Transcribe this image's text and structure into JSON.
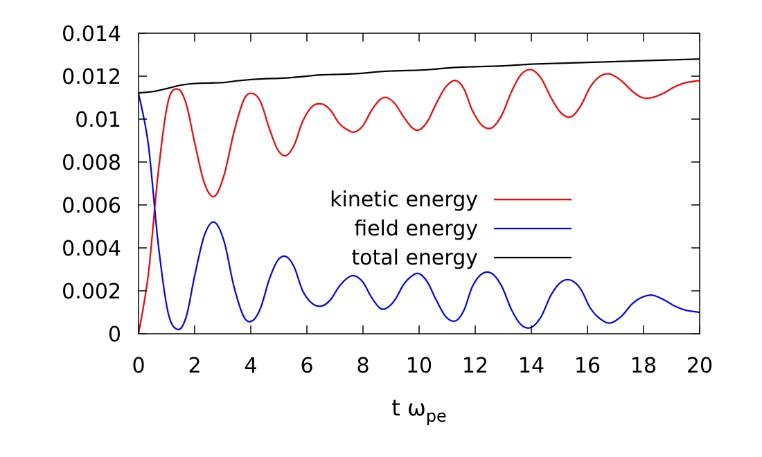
{
  "chart_data": {
    "type": "line",
    "title": "",
    "xlabel": "t ω",
    "xlabel_subscript": "pe",
    "ylabel": "",
    "xlim": [
      0,
      20
    ],
    "ylim": [
      0,
      0.014
    ],
    "xticks": [
      "0",
      "2",
      "4",
      "6",
      "8",
      "10",
      "12",
      "14",
      "16",
      "18",
      "20"
    ],
    "yticks": [
      "0",
      "0.002",
      "0.004",
      "0.006",
      "0.008",
      "0.01",
      "0.012",
      "0.014"
    ],
    "grid": false,
    "legend_position": "center-right",
    "series": [
      {
        "name": "kinetic energy",
        "color": "#ff0000",
        "x": [
          0,
          0.35,
          0.7,
          1.05,
          1.4,
          1.7,
          2.0,
          2.35,
          2.7,
          3.05,
          3.4,
          3.75,
          4.05,
          4.35,
          4.65,
          4.95,
          5.25,
          5.55,
          5.85,
          6.2,
          6.55,
          6.85,
          7.15,
          7.45,
          7.7,
          8.0,
          8.3,
          8.6,
          8.85,
          9.15,
          9.45,
          9.75,
          10.0,
          10.3,
          10.6,
          10.95,
          11.3,
          11.6,
          11.9,
          12.25,
          12.6,
          12.95,
          13.3,
          13.65,
          14.0,
          14.35,
          14.7,
          15.05,
          15.4,
          15.75,
          16.1,
          16.45,
          16.8,
          17.2,
          17.6,
          17.95,
          18.3,
          18.7,
          19.1,
          19.5,
          20.0
        ],
        "y": [
          0.0,
          0.0028,
          0.0075,
          0.0108,
          0.0114,
          0.0107,
          0.0089,
          0.007,
          0.0064,
          0.0074,
          0.0094,
          0.0109,
          0.0112,
          0.0108,
          0.0096,
          0.0086,
          0.0083,
          0.0088,
          0.0099,
          0.0106,
          0.0107,
          0.0104,
          0.0098,
          0.0095,
          0.0094,
          0.0097,
          0.0104,
          0.0109,
          0.011,
          0.0107,
          0.0101,
          0.0096,
          0.0095,
          0.0099,
          0.0107,
          0.0115,
          0.0118,
          0.0114,
          0.0104,
          0.0097,
          0.0096,
          0.0102,
          0.0113,
          0.0121,
          0.0123,
          0.0119,
          0.011,
          0.0103,
          0.0101,
          0.0106,
          0.0115,
          0.012,
          0.0121,
          0.0118,
          0.0113,
          0.011,
          0.011,
          0.0112,
          0.0115,
          0.0117,
          0.0118
        ]
      },
      {
        "name": "field energy",
        "color": "#0000ff",
        "x": [
          0,
          0.35,
          0.7,
          1.05,
          1.4,
          1.7,
          2.0,
          2.35,
          2.7,
          3.05,
          3.4,
          3.75,
          4.05,
          4.35,
          4.65,
          4.95,
          5.25,
          5.55,
          5.85,
          6.2,
          6.55,
          6.85,
          7.15,
          7.45,
          7.7,
          8.0,
          8.3,
          8.6,
          8.85,
          9.15,
          9.45,
          9.75,
          10.0,
          10.3,
          10.6,
          10.95,
          11.3,
          11.6,
          11.9,
          12.25,
          12.6,
          12.95,
          13.3,
          13.65,
          14.0,
          14.35,
          14.7,
          15.05,
          15.4,
          15.75,
          16.1,
          16.45,
          16.8,
          17.2,
          17.6,
          17.95,
          18.3,
          18.7,
          19.1,
          19.5,
          20.0
        ],
        "y": [
          0.0112,
          0.0088,
          0.0042,
          0.001,
          0.0002,
          0.0008,
          0.0027,
          0.0046,
          0.0052,
          0.0043,
          0.0022,
          0.0008,
          0.0006,
          0.0012,
          0.0025,
          0.0034,
          0.0036,
          0.0031,
          0.002,
          0.0014,
          0.0013,
          0.0016,
          0.0022,
          0.0026,
          0.0027,
          0.0024,
          0.0017,
          0.0012,
          0.0012,
          0.0016,
          0.0023,
          0.0027,
          0.0028,
          0.0024,
          0.0016,
          0.0008,
          0.0006,
          0.0011,
          0.0022,
          0.0028,
          0.0028,
          0.0022,
          0.0011,
          0.0004,
          0.0003,
          0.0008,
          0.0018,
          0.0024,
          0.0025,
          0.0021,
          0.0012,
          0.0007,
          0.0005,
          0.0008,
          0.0014,
          0.0017,
          0.0018,
          0.0016,
          0.0013,
          0.0011,
          0.001
        ]
      },
      {
        "name": "total energy",
        "color": "#000000",
        "x": [
          0,
          0.5,
          1.0,
          1.5,
          2.0,
          2.5,
          3.0,
          3.5,
          4.0,
          4.5,
          5.0,
          5.5,
          6.0,
          6.5,
          7.0,
          7.5,
          8.0,
          8.5,
          9.0,
          9.5,
          10.0,
          10.5,
          11.0,
          11.5,
          12.0,
          12.5,
          13.0,
          13.5,
          14.0,
          14.5,
          15.0,
          15.5,
          16.0,
          16.5,
          17.0,
          17.5,
          18.0,
          18.5,
          19.0,
          19.5,
          20.0
        ],
        "y": [
          0.01122,
          0.01128,
          0.01142,
          0.01158,
          0.01166,
          0.01168,
          0.0117,
          0.01178,
          0.01184,
          0.01188,
          0.0119,
          0.01194,
          0.012,
          0.01206,
          0.01208,
          0.0121,
          0.01214,
          0.0122,
          0.01224,
          0.01226,
          0.01228,
          0.01232,
          0.01238,
          0.01242,
          0.01244,
          0.01246,
          0.01248,
          0.01252,
          0.01256,
          0.01258,
          0.0126,
          0.01262,
          0.01264,
          0.01266,
          0.01268,
          0.0127,
          0.01272,
          0.01274,
          0.01276,
          0.01278,
          0.0128
        ]
      }
    ]
  }
}
